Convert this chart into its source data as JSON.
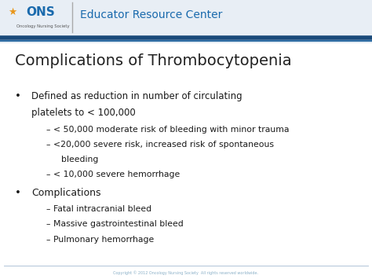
{
  "title": "Complications of Thrombocytopenia",
  "header_text": "Educator Resource Center",
  "copyright": "Copyright © 2012 Oncology Nursing Society  All rights reserved worldwide.",
  "header_bg": "#e8eef5",
  "header_stripe_dark": "#1a4a7a",
  "header_stripe_mid": "#2e6da4",
  "slide_bg": "#ffffff",
  "title_color": "#222222",
  "title_fontsize": 14,
  "bullet_color": "#1a1a1a",
  "bullet_fontsize": 8.5,
  "sub_bullet_fontsize": 7.8,
  "header_fontsize": 10,
  "ons_fontsize": 11,
  "ons_sub_fontsize": 3.8,
  "separator_color": "#aaaaaa",
  "footer_line_color": "#b0c4d8",
  "copyright_color": "#8ab0c8",
  "copyright_fontsize": 3.5,
  "ons_color": "#1a6aad",
  "header_text_color": "#1a6aad"
}
